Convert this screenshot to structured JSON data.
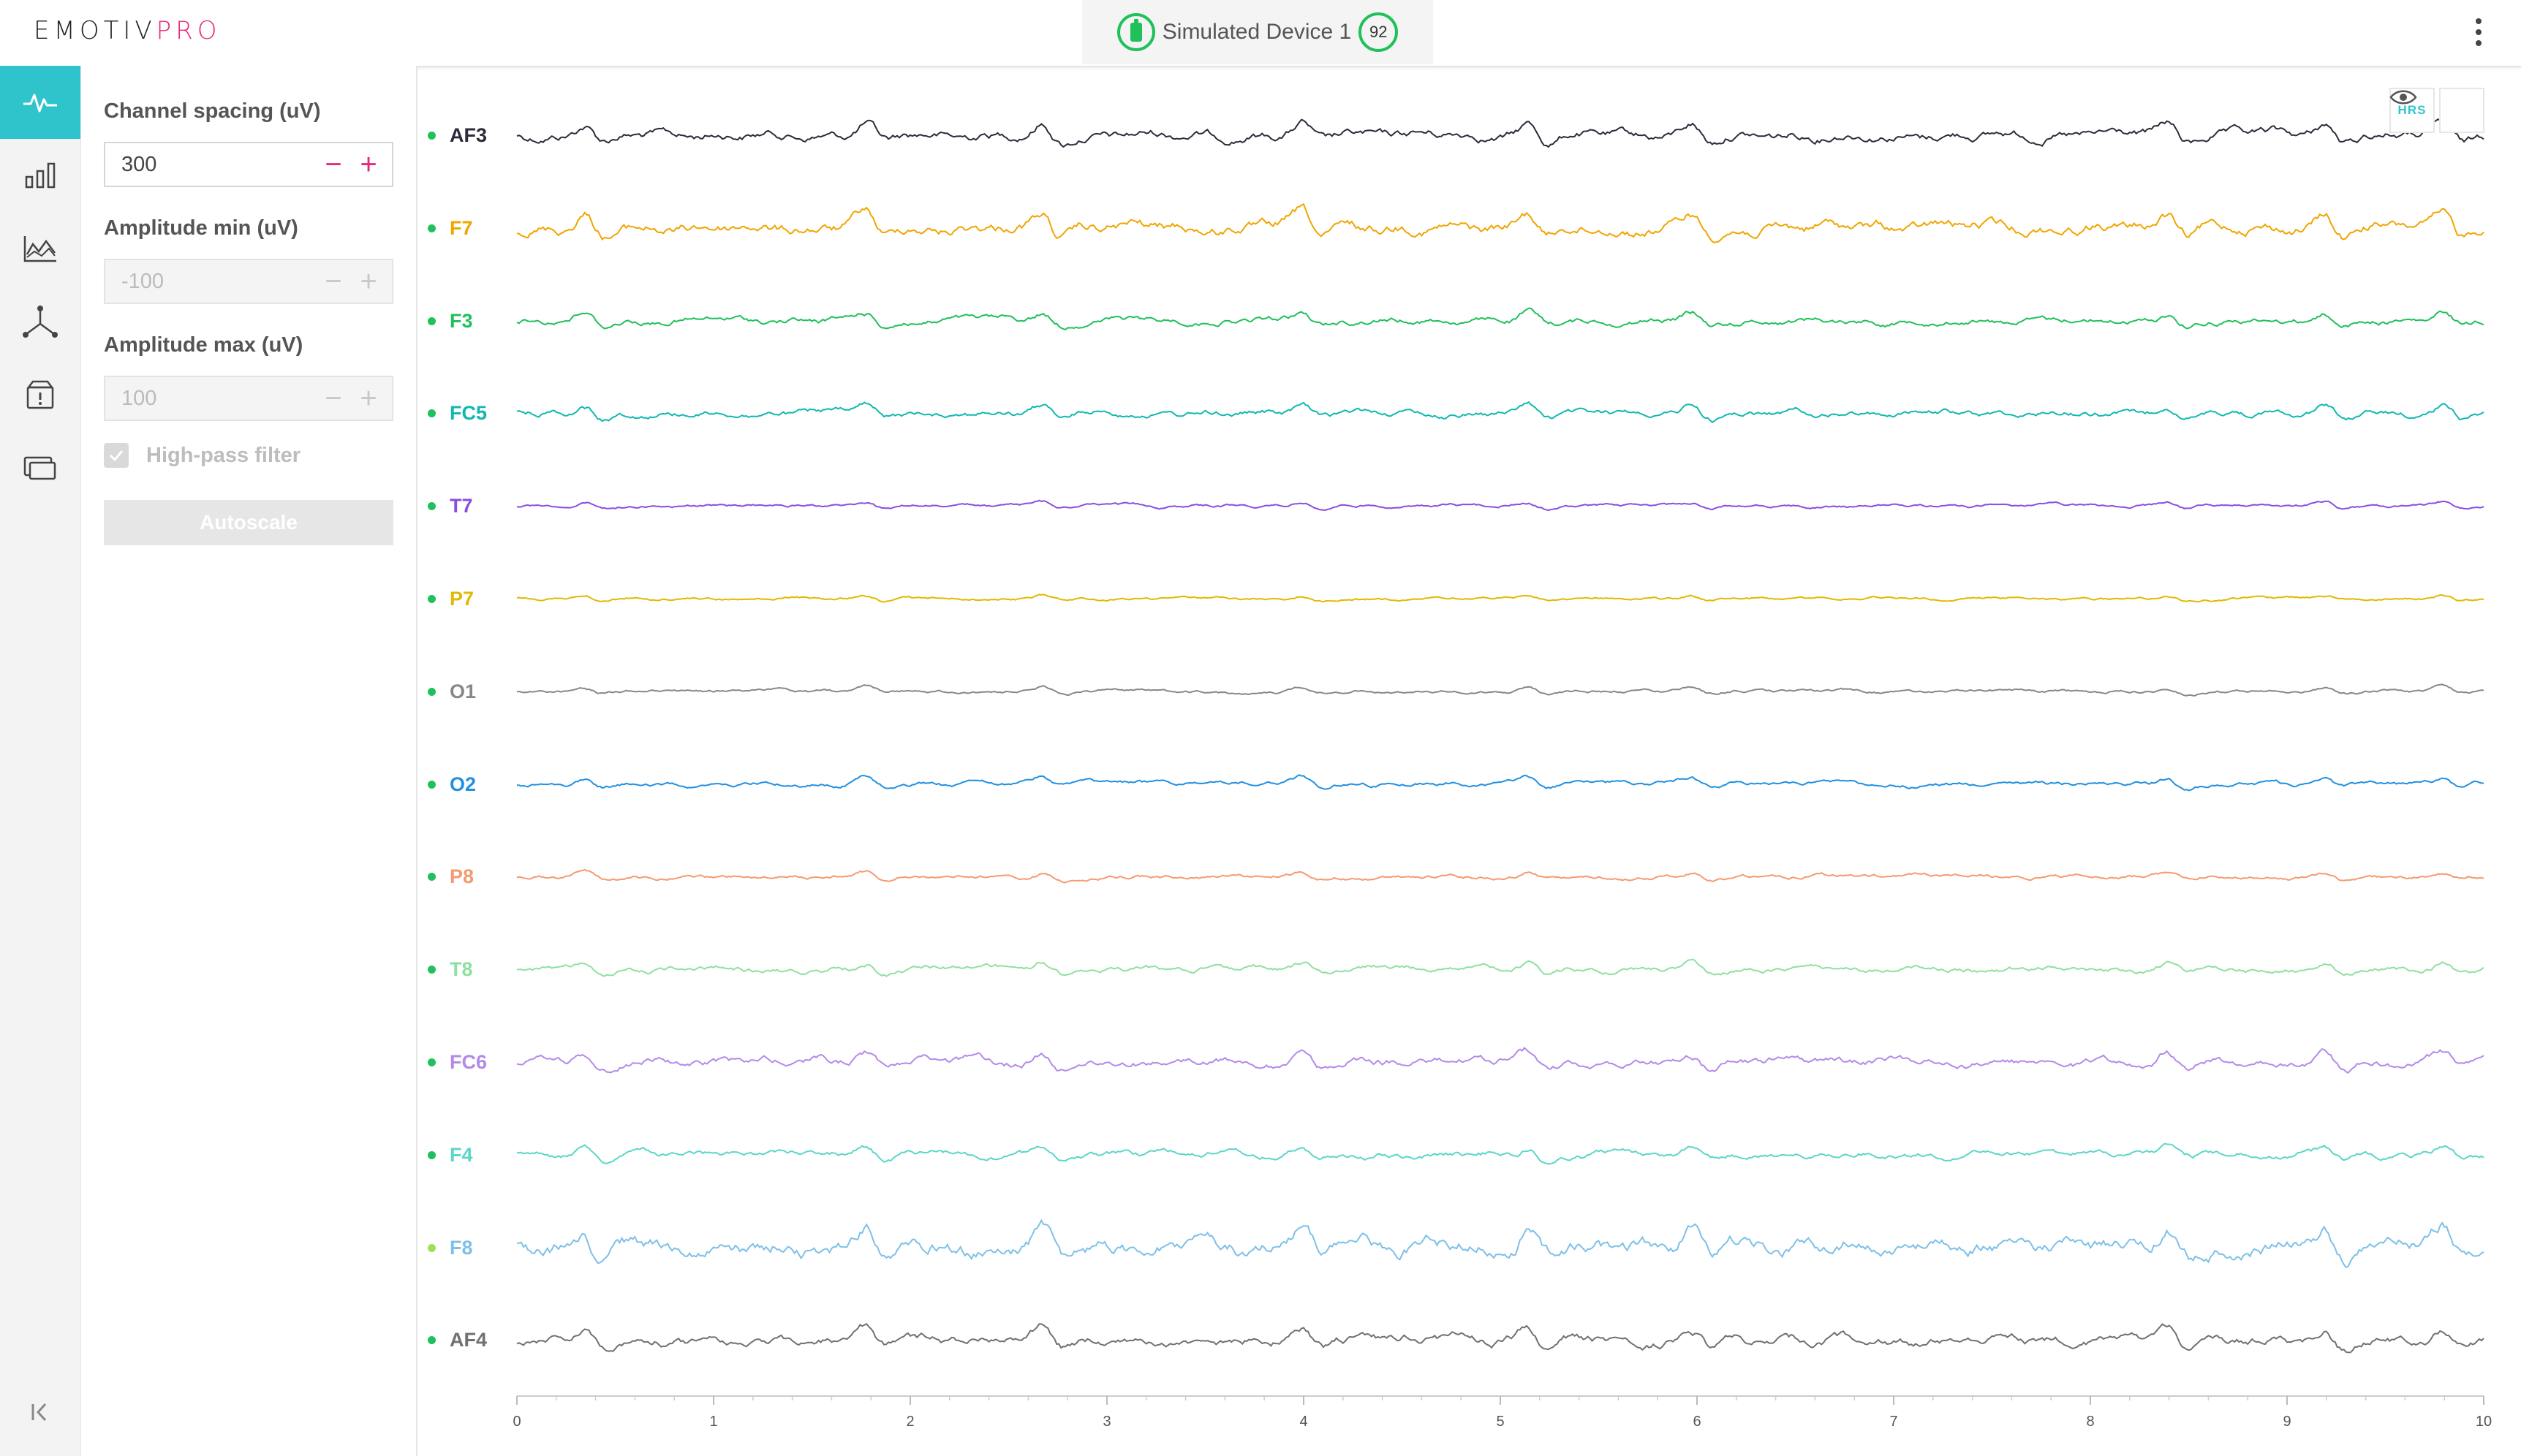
{
  "header": {
    "logo_part1": "EMOTIV",
    "logo_part2": "PRO",
    "device_name": "Simulated Device 1",
    "battery_icon": "battery-icon",
    "signal_quality": "92",
    "menu_icon": "more-vertical-icon"
  },
  "colors": {
    "accent": "#2fc4cc",
    "brand_pink": "#e6287a",
    "good_green": "#20c05a"
  },
  "nav": {
    "items": [
      {
        "icon": "waveform-icon",
        "active": true
      },
      {
        "icon": "bar-chart-icon",
        "active": false
      },
      {
        "icon": "line-chart-icon",
        "active": false
      },
      {
        "icon": "motion-axes-icon",
        "active": false
      },
      {
        "icon": "archive-alert-icon",
        "active": false
      },
      {
        "icon": "devices-icon",
        "active": false
      }
    ],
    "collapse_icon": "collapse-left-icon"
  },
  "settings": {
    "channel_spacing_label": "Channel spacing (uV)",
    "channel_spacing_value": "300",
    "amp_min_label": "Amplitude min (uV)",
    "amp_min_value": "-100",
    "amp_max_label": "Amplitude max (uV)",
    "amp_max_value": "100",
    "hp_filter_label": "High-pass filter",
    "hp_filter_checked": true,
    "autoscale_label": "Autoscale"
  },
  "overlay": {
    "hrs_label": "HRS",
    "eye_icon": "eye-icon"
  },
  "chart_data": {
    "type": "line",
    "x_ticks": [
      "0",
      "1",
      "2",
      "3",
      "4",
      "5",
      "6",
      "7",
      "8",
      "9",
      "10"
    ],
    "xlim": [
      0,
      10
    ],
    "channels": [
      {
        "name": "AF3",
        "color": "#2b2b3a",
        "status": "#20c05a",
        "amp": 1.0
      },
      {
        "name": "F7",
        "color": "#f0a500",
        "status": "#20c05a",
        "amp": 1.25
      },
      {
        "name": "F3",
        "color": "#1fc05a",
        "status": "#20c05a",
        "amp": 0.7
      },
      {
        "name": "FC5",
        "color": "#10b8b0",
        "status": "#20c05a",
        "amp": 0.7
      },
      {
        "name": "T7",
        "color": "#8a4ee0",
        "status": "#20c05a",
        "amp": 0.35
      },
      {
        "name": "P7",
        "color": "#e3b800",
        "status": "#20c05a",
        "amp": 0.3
      },
      {
        "name": "O1",
        "color": "#888888",
        "status": "#20c05a",
        "amp": 0.35
      },
      {
        "name": "O2",
        "color": "#2090e0",
        "status": "#20c05a",
        "amp": 0.5
      },
      {
        "name": "P8",
        "color": "#f59a70",
        "status": "#20c05a",
        "amp": 0.45
      },
      {
        "name": "T8",
        "color": "#8fe0a0",
        "status": "#20c05a",
        "amp": 0.6
      },
      {
        "name": "FC6",
        "color": "#b48ae8",
        "status": "#20c05a",
        "amp": 0.9
      },
      {
        "name": "F4",
        "color": "#5cd6c8",
        "status": "#20c05a",
        "amp": 0.7
      },
      {
        "name": "F8",
        "color": "#7ec0e8",
        "status": "#9ee05a",
        "amp": 1.7
      },
      {
        "name": "AF4",
        "color": "#707070",
        "status": "#20c05a",
        "amp": 1.0
      }
    ]
  }
}
